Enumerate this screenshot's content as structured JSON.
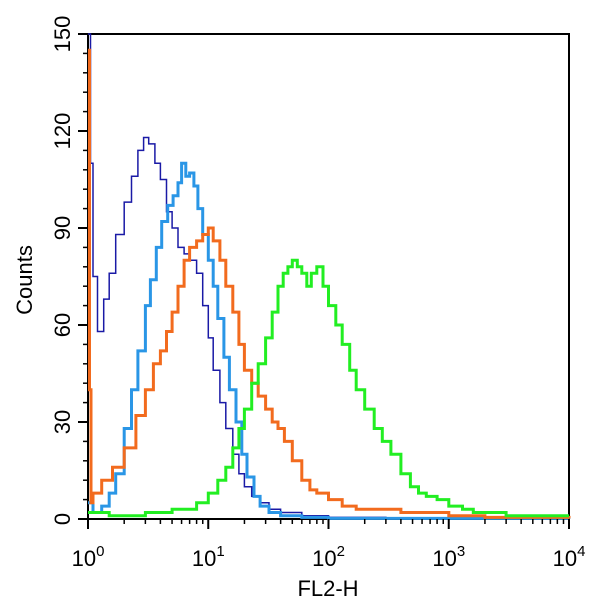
{
  "chart_data": {
    "type": "line",
    "title": "",
    "xlabel": "FL2-H",
    "ylabel": "Counts",
    "xscale": "log",
    "xlim": [
      1,
      10000
    ],
    "ylim": [
      0,
      150
    ],
    "grid": false,
    "legend": "none",
    "x_ticks": [
      {
        "value": 1,
        "base": "10",
        "exp": "0"
      },
      {
        "value": 10,
        "base": "10",
        "exp": "1"
      },
      {
        "value": 100,
        "base": "10",
        "exp": "2"
      },
      {
        "value": 1000,
        "base": "10",
        "exp": "3"
      },
      {
        "value": 10000,
        "base": "10",
        "exp": "4"
      }
    ],
    "y_ticks": [
      {
        "value": 0,
        "label": "0"
      },
      {
        "value": 30,
        "label": "30"
      },
      {
        "value": 60,
        "label": "60"
      },
      {
        "value": 90,
        "label": "90"
      },
      {
        "value": 120,
        "label": "120"
      },
      {
        "value": 150,
        "label": "150"
      }
    ],
    "series": [
      {
        "color": "#1a1aa6",
        "stroke_px": 1.5,
        "points": [
          [
            1,
            150
          ],
          [
            1.05,
            110
          ],
          [
            1.1,
            75
          ],
          [
            1.2,
            58
          ],
          [
            1.35,
            68
          ],
          [
            1.5,
            76
          ],
          [
            1.7,
            88
          ],
          [
            2.0,
            98
          ],
          [
            2.3,
            106
          ],
          [
            2.6,
            114
          ],
          [
            2.9,
            118
          ],
          [
            3.2,
            116
          ],
          [
            3.6,
            110
          ],
          [
            4.0,
            105
          ],
          [
            4.5,
            95
          ],
          [
            5.0,
            90
          ],
          [
            5.6,
            84
          ],
          [
            6.3,
            82
          ],
          [
            7.0,
            80
          ],
          [
            8.0,
            76
          ],
          [
            9.0,
            66
          ],
          [
            10,
            56
          ],
          [
            11,
            46
          ],
          [
            12.5,
            36
          ],
          [
            14,
            28
          ],
          [
            16,
            20
          ],
          [
            18,
            14
          ],
          [
            20,
            10
          ],
          [
            23,
            7
          ],
          [
            27,
            5
          ],
          [
            32,
            3
          ],
          [
            40,
            2
          ],
          [
            60,
            1
          ],
          [
            100,
            0.5
          ],
          [
            300,
            0.2
          ],
          [
            10000,
            0.1
          ]
        ]
      },
      {
        "color": "#2a96e6",
        "stroke_px": 3,
        "points": [
          [
            1,
            5
          ],
          [
            1.1,
            2
          ],
          [
            1.3,
            4
          ],
          [
            1.5,
            8
          ],
          [
            1.7,
            14
          ],
          [
            2.0,
            28
          ],
          [
            2.3,
            40
          ],
          [
            2.6,
            52
          ],
          [
            3.0,
            66
          ],
          [
            3.3,
            74
          ],
          [
            3.7,
            84
          ],
          [
            4.1,
            92
          ],
          [
            4.6,
            97
          ],
          [
            5.1,
            100
          ],
          [
            5.6,
            104
          ],
          [
            6.0,
            110
          ],
          [
            6.5,
            106
          ],
          [
            7.0,
            107
          ],
          [
            7.6,
            103
          ],
          [
            8.2,
            96
          ],
          [
            9.0,
            88
          ],
          [
            10,
            80
          ],
          [
            11,
            72
          ],
          [
            12,
            62
          ],
          [
            13.5,
            50
          ],
          [
            15,
            40
          ],
          [
            17,
            30
          ],
          [
            19,
            20
          ],
          [
            21,
            13
          ],
          [
            24,
            7
          ],
          [
            27,
            4
          ],
          [
            32,
            2
          ],
          [
            40,
            1
          ],
          [
            60,
            0.5
          ],
          [
            100,
            0.2
          ],
          [
            10000,
            0.1
          ]
        ]
      },
      {
        "color": "#f26b1e",
        "stroke_px": 3,
        "points": [
          [
            1,
            145
          ],
          [
            1.03,
            40
          ],
          [
            1.06,
            5
          ],
          [
            1.1,
            8
          ],
          [
            1.3,
            12
          ],
          [
            1.6,
            16
          ],
          [
            2.0,
            22
          ],
          [
            2.5,
            32
          ],
          [
            3.0,
            40
          ],
          [
            3.5,
            48
          ],
          [
            4.0,
            52
          ],
          [
            4.5,
            58
          ],
          [
            5.0,
            64
          ],
          [
            5.6,
            72
          ],
          [
            6.3,
            80
          ],
          [
            7.0,
            84
          ],
          [
            8.0,
            86
          ],
          [
            9.0,
            88
          ],
          [
            10,
            90
          ],
          [
            11,
            86
          ],
          [
            12.5,
            80
          ],
          [
            14,
            72
          ],
          [
            16,
            64
          ],
          [
            18,
            54
          ],
          [
            20,
            46
          ],
          [
            23,
            42
          ],
          [
            26,
            38
          ],
          [
            30,
            34
          ],
          [
            34,
            30
          ],
          [
            38,
            28
          ],
          [
            43,
            24
          ],
          [
            50,
            18
          ],
          [
            60,
            12
          ],
          [
            70,
            9
          ],
          [
            80,
            8
          ],
          [
            100,
            6
          ],
          [
            130,
            4
          ],
          [
            170,
            3
          ],
          [
            250,
            3
          ],
          [
            400,
            2
          ],
          [
            600,
            2
          ],
          [
            1000,
            1
          ],
          [
            2000,
            0.5
          ],
          [
            10000,
            0.2
          ]
        ]
      },
      {
        "color": "#22ee22",
        "stroke_px": 3,
        "points": [
          [
            1,
            2
          ],
          [
            1.5,
            1
          ],
          [
            2,
            1
          ],
          [
            3,
            2
          ],
          [
            4,
            2
          ],
          [
            5,
            3
          ],
          [
            6,
            3
          ],
          [
            8,
            5
          ],
          [
            10,
            8
          ],
          [
            12,
            12
          ],
          [
            14,
            16
          ],
          [
            16,
            22
          ],
          [
            18,
            28
          ],
          [
            20,
            34
          ],
          [
            23,
            42
          ],
          [
            26,
            48
          ],
          [
            30,
            56
          ],
          [
            34,
            64
          ],
          [
            38,
            72
          ],
          [
            42,
            76
          ],
          [
            46,
            78
          ],
          [
            50,
            80
          ],
          [
            55,
            78
          ],
          [
            60,
            76
          ],
          [
            66,
            72
          ],
          [
            72,
            76
          ],
          [
            80,
            78
          ],
          [
            90,
            72
          ],
          [
            100,
            66
          ],
          [
            115,
            60
          ],
          [
            130,
            54
          ],
          [
            150,
            46
          ],
          [
            170,
            40
          ],
          [
            200,
            34
          ],
          [
            240,
            28
          ],
          [
            280,
            24
          ],
          [
            330,
            20
          ],
          [
            400,
            14
          ],
          [
            480,
            10
          ],
          [
            560,
            8
          ],
          [
            650,
            7
          ],
          [
            800,
            6
          ],
          [
            1000,
            4
          ],
          [
            1300,
            3
          ],
          [
            1600,
            2
          ],
          [
            2000,
            2
          ],
          [
            3000,
            1
          ],
          [
            5000,
            1
          ],
          [
            10000,
            1
          ]
        ]
      }
    ]
  }
}
